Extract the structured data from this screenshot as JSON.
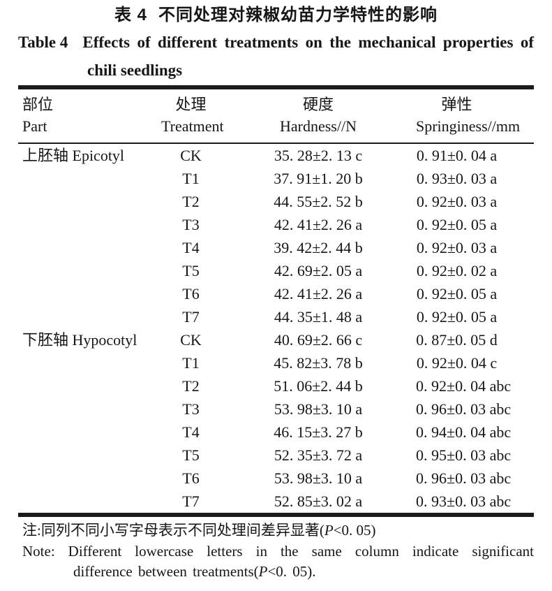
{
  "title": {
    "zh_label": "表 4",
    "zh_text": "不同处理对辣椒幼苗力学特性的影响",
    "en_label": "Table 4",
    "en_text": "Effects of different treatments on the mechanical properties of",
    "en_line2": "chili seedlings"
  },
  "table": {
    "headers": [
      {
        "zh": "部位",
        "en": "Part"
      },
      {
        "zh": "处理",
        "en": "Treatment"
      },
      {
        "zh": "硬度",
        "en": "Hardness//N"
      },
      {
        "zh": "弹性",
        "en": "Springiness//mm"
      }
    ],
    "groups": [
      {
        "part": "上胚轴 Epicotyl",
        "rows": [
          {
            "treatment": "CK",
            "hardness": "35. 28±2. 13 c",
            "springiness": "0. 91±0. 04 a"
          },
          {
            "treatment": "T1",
            "hardness": "37. 91±1. 20 b",
            "springiness": "0. 93±0. 03 a"
          },
          {
            "treatment": "T2",
            "hardness": "44. 55±2. 52 b",
            "springiness": "0. 92±0. 03 a"
          },
          {
            "treatment": "T3",
            "hardness": "42. 41±2. 26 a",
            "springiness": "0. 92±0. 05 a"
          },
          {
            "treatment": "T4",
            "hardness": "39. 42±2. 44 b",
            "springiness": "0. 92±0. 03 a"
          },
          {
            "treatment": "T5",
            "hardness": "42. 69±2. 05 a",
            "springiness": "0. 92±0. 02 a"
          },
          {
            "treatment": "T6",
            "hardness": "42. 41±2. 26 a",
            "springiness": "0. 92±0. 05 a"
          },
          {
            "treatment": "T7",
            "hardness": "44. 35±1. 48 a",
            "springiness": "0. 92±0. 05 a"
          }
        ]
      },
      {
        "part": "下胚轴 Hypocotyl",
        "rows": [
          {
            "treatment": "CK",
            "hardness": "40. 69±2. 66 c",
            "springiness": "0. 87±0. 05 d"
          },
          {
            "treatment": "T1",
            "hardness": "45. 82±3. 78 b",
            "springiness": "0. 92±0. 04 c"
          },
          {
            "treatment": "T2",
            "hardness": "51. 06±2. 44 b",
            "springiness": "0. 92±0. 04 abc"
          },
          {
            "treatment": "T3",
            "hardness": "53. 98±3. 10 a",
            "springiness": "0. 96±0. 03 abc"
          },
          {
            "treatment": "T4",
            "hardness": "46. 15±3. 27 b",
            "springiness": "0. 94±0. 04 abc"
          },
          {
            "treatment": "T5",
            "hardness": "52. 35±3. 72 a",
            "springiness": "0. 95±0. 03 abc"
          },
          {
            "treatment": "T6",
            "hardness": "53. 98±3. 10 a",
            "springiness": "0. 96±0. 03 abc"
          },
          {
            "treatment": "T7",
            "hardness": "52. 85±3. 02 a",
            "springiness": "0. 93±0. 03 abc"
          }
        ]
      }
    ]
  },
  "notes": {
    "zh_prefix": "注:同列不同小写字母表示不同处理间差异显著(",
    "zh_p": "P",
    "zh_suffix": "<0. 05)",
    "en_line1": "Note: Different lowercase letters in the same column indicate significant",
    "en2_prefix": "difference between treatments(",
    "en2_p": "P",
    "en2_suffix": "<0. 05)."
  },
  "colors": {
    "text": "#161616",
    "rule": "#1b1b1b",
    "background": "#ffffff"
  }
}
